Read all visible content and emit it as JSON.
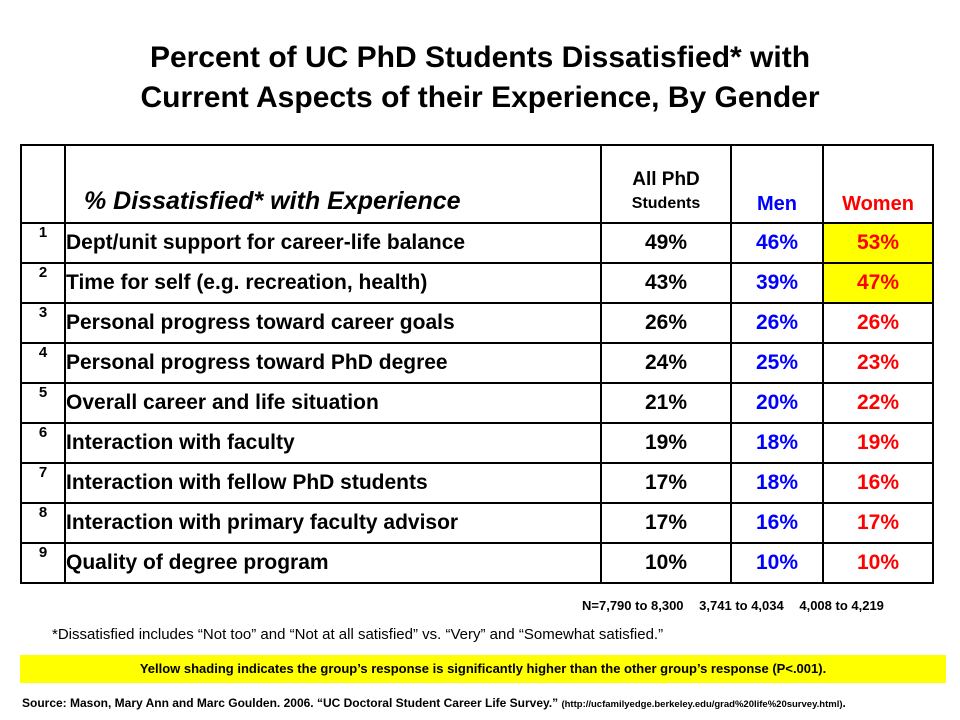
{
  "title_line1": "Percent of UC PhD Students Dissatisfied* with",
  "title_line2": "Current Aspects of their Experience, By Gender",
  "chart_data": {
    "type": "table",
    "columns": [
      "% Dissatisfied* with Experience",
      "All PhD Students",
      "Men",
      "Women"
    ],
    "header": {
      "item": "% Dissatisfied* with Experience",
      "all_line1": "All PhD",
      "all_line2": "Students",
      "men": "Men",
      "women": "Women"
    },
    "rows": [
      {
        "num": "1",
        "item": "Dept/unit support for career-life balance",
        "all": "49%",
        "men": "46%",
        "women": "53%",
        "highlight_women": true
      },
      {
        "num": "2",
        "item": "Time for self (e.g. recreation, health)",
        "all": "43%",
        "men": "39%",
        "women": "47%",
        "highlight_women": true
      },
      {
        "num": "3",
        "item": "Personal progress toward career goals",
        "all": "26%",
        "men": "26%",
        "women": "26%",
        "highlight_women": false
      },
      {
        "num": "4",
        "item": "Personal progress toward PhD degree",
        "all": "24%",
        "men": "25%",
        "women": "23%",
        "highlight_women": false
      },
      {
        "num": "5",
        "item": "Overall career and life situation",
        "all": "21%",
        "men": "20%",
        "women": "22%",
        "highlight_women": false
      },
      {
        "num": "6",
        "item": "Interaction with faculty",
        "all": "19%",
        "men": "18%",
        "women": "19%",
        "highlight_women": false
      },
      {
        "num": "7",
        "item": "Interaction with fellow PhD students",
        "all": "17%",
        "men": "18%",
        "women": "16%",
        "highlight_women": false
      },
      {
        "num": "8",
        "item": "Interaction with primary faculty advisor",
        "all": "17%",
        "men": "16%",
        "women": "17%",
        "highlight_women": false
      },
      {
        "num": "9",
        "item": "Quality of degree program",
        "all": "10%",
        "men": "10%",
        "women": "10%",
        "highlight_women": false
      }
    ],
    "sample_sizes": {
      "all": "N=7,790 to 8,300",
      "men": "3,741 to 4,034",
      "women": "4,008 to 4,219"
    }
  },
  "footnote": "*Dissatisfied includes “Not too” and “Not at all satisfied” vs. “Very” and “Somewhat satisfied.”",
  "yellow_note": "Yellow shading indicates the group’s response is significantly higher than the other group’s response (P<.001).",
  "source_text": "Source: Mason, Mary Ann  and Marc Goulden.  2006. “UC Doctoral  Student Career Life Survey.” ",
  "source_url": "(http://ucfamilyedge.berkeley.edu/grad%20life%20survey.html)",
  "source_end": ".",
  "colors": {
    "men": "#0000ff",
    "women": "#ff0000",
    "highlight": "#ffff00"
  }
}
